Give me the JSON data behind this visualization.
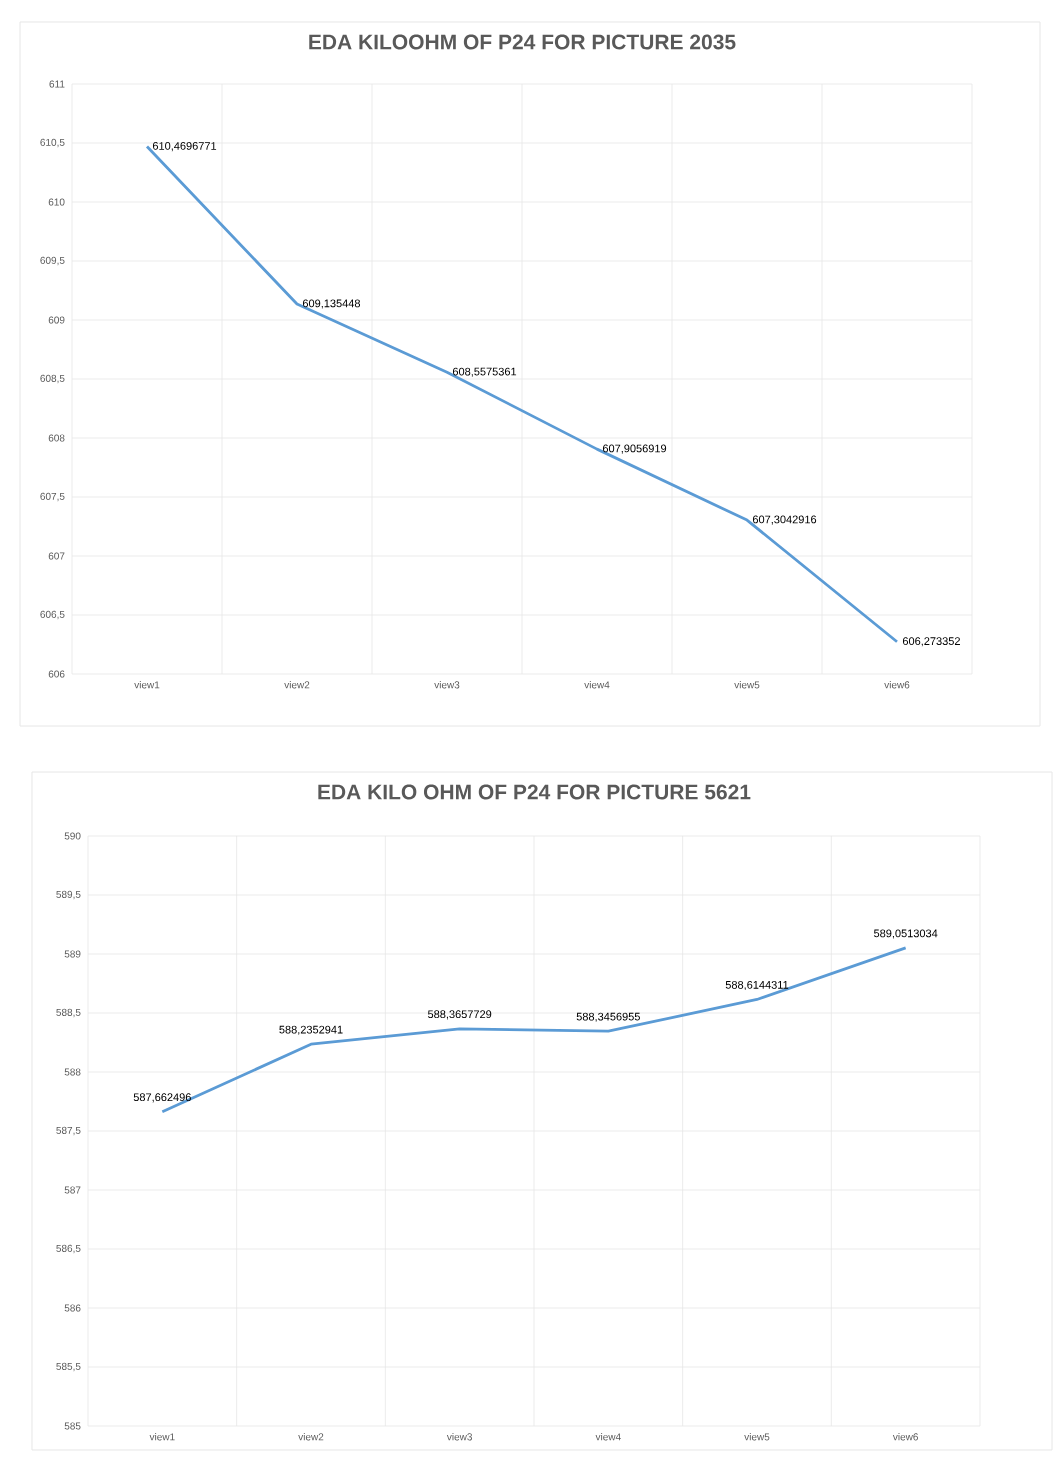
{
  "chart_data": [
    {
      "type": "line",
      "title": "EDA KILOOHM OF P24 FOR PICTURE 2035",
      "categories": [
        "view1",
        "view2",
        "view3",
        "view4",
        "view5",
        "view6"
      ],
      "series": [
        {
          "color": "#5b9bd5",
          "values": [
            610.4696771,
            609.135448,
            608.5575361,
            607.9056919,
            607.3042916,
            606.273352
          ],
          "value_labels": [
            "610,4696771",
            "609,135448",
            "608,5575361",
            "607,9056919",
            "607,3042916",
            "606,273352"
          ]
        }
      ],
      "ylim": [
        606,
        611
      ],
      "yticks": [
        606,
        {
          "value": 606.5,
          "label": "606,5"
        },
        607,
        {
          "value": 607.5,
          "label": "607,5"
        },
        608,
        {
          "value": 608.5,
          "label": "608,5"
        },
        609,
        {
          "value": 609.5,
          "label": "609,5"
        },
        610,
        {
          "value": 610.5,
          "label": "610,5"
        },
        611
      ],
      "grid": true,
      "marker": "none",
      "line_style": "solid"
    },
    {
      "type": "line",
      "title": "EDA KILO OHM OF P24 FOR PICTURE 5621",
      "categories": [
        "view1",
        "view2",
        "view3",
        "view4",
        "view5",
        "view6"
      ],
      "series": [
        {
          "color": "#5b9bd5",
          "values": [
            587.662496,
            588.2352941,
            588.3657729,
            588.3456955,
            588.6144311,
            589.0513034
          ],
          "value_labels": [
            "587,662496",
            "588,2352941",
            "588,3657729",
            "588,3456955",
            "588,6144311",
            "589,0513034"
          ]
        }
      ],
      "ylim": [
        585,
        590
      ],
      "yticks": [
        585,
        {
          "value": 585.5,
          "label": "585,5"
        },
        586,
        {
          "value": 586.5,
          "label": "586,5"
        },
        587,
        {
          "value": 587.5,
          "label": "587,5"
        },
        588,
        {
          "value": 588.5,
          "label": "588,5"
        },
        589,
        {
          "value": 589.5,
          "label": "589,5"
        },
        590
      ],
      "grid": true,
      "marker": "none",
      "line_style": "solid"
    }
  ]
}
